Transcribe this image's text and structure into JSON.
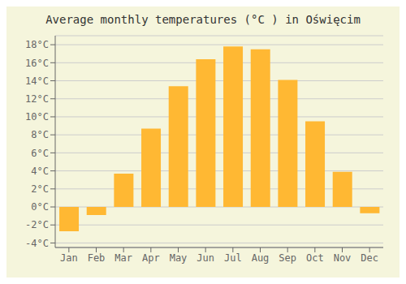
{
  "chart_data": {
    "type": "bar",
    "title": "Average monthly temperatures (°C ) in Oświęcim",
    "categories": [
      "Jan",
      "Feb",
      "Mar",
      "Apr",
      "May",
      "Jun",
      "Jul",
      "Aug",
      "Sep",
      "Oct",
      "Nov",
      "Dec"
    ],
    "values": [
      -2.7,
      -0.9,
      3.7,
      8.7,
      13.4,
      16.4,
      17.8,
      17.5,
      14.1,
      9.5,
      3.9,
      -0.7
    ],
    "color": "#FFB833",
    "ylim": [
      -4.5,
      19
    ],
    "yticks": [
      {
        "value": -4,
        "label": "-4°C"
      },
      {
        "value": -2,
        "label": "-2°C"
      },
      {
        "value": 0,
        "label": "0°C"
      },
      {
        "value": 2,
        "label": "2°C"
      },
      {
        "value": 4,
        "label": "4°C"
      },
      {
        "value": 6,
        "label": "6°C"
      },
      {
        "value": 8,
        "label": "8°C"
      },
      {
        "value": 10,
        "label": "10°C"
      },
      {
        "value": 12,
        "label": "12°C"
      },
      {
        "value": 14,
        "label": "14°C"
      },
      {
        "value": 16,
        "label": "16°C"
      },
      {
        "value": 18,
        "label": "18°C"
      }
    ],
    "grid": true
  }
}
